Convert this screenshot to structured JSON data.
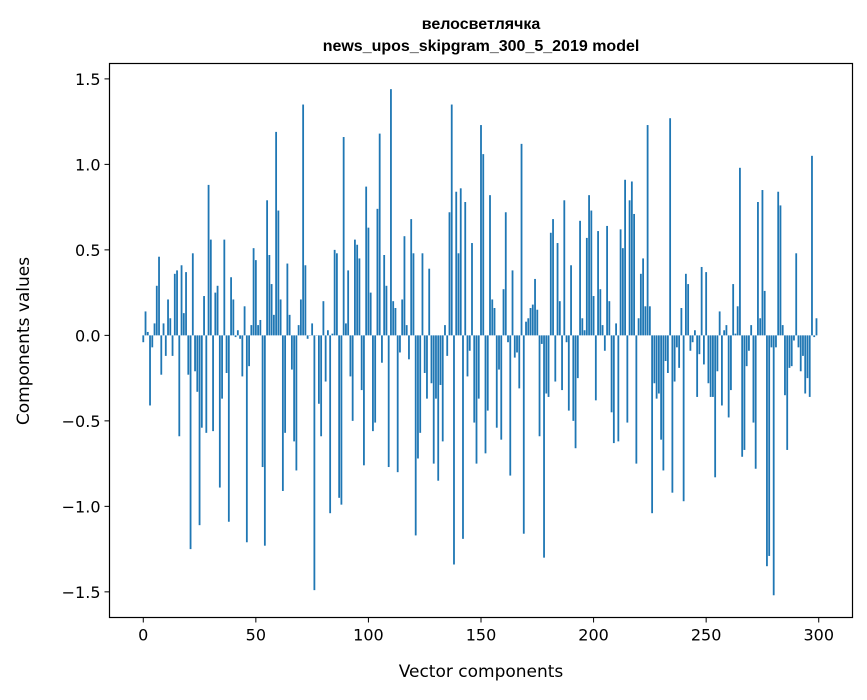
{
  "chart_data": {
    "type": "bar",
    "title": "велосветлячка",
    "subtitle": "news_upos_skipgram_300_5_2019 model",
    "xlabel": "Vector components",
    "ylabel": "Components values",
    "xlim": [
      -15,
      315
    ],
    "ylim": [
      -1.65,
      1.59
    ],
    "xticks": [
      0,
      50,
      100,
      150,
      200,
      250,
      300
    ],
    "xtick_labels": [
      "0",
      "50",
      "100",
      "150",
      "200",
      "250",
      "300"
    ],
    "yticks": [
      -1.5,
      -1.0,
      -0.5,
      0.0,
      0.5,
      1.0,
      1.5
    ],
    "ytick_labels": [
      "−1.5",
      "−1.0",
      "−0.5",
      "0.0",
      "0.5",
      "1.0",
      "1.5"
    ],
    "grid": false,
    "bar_color": "#1f77b4",
    "values": [
      -0.04,
      0.14,
      0.02,
      -0.41,
      -0.07,
      0.07,
      0.29,
      0.46,
      -0.23,
      0.07,
      -0.12,
      0.21,
      0.1,
      -0.12,
      0.36,
      0.38,
      -0.59,
      0.41,
      0.13,
      0.37,
      -0.23,
      -1.25,
      0.48,
      -0.21,
      -0.33,
      -1.11,
      -0.54,
      0.23,
      -0.57,
      0.88,
      0.56,
      -0.56,
      0.25,
      0.29,
      -0.89,
      -0.37,
      0.56,
      -0.22,
      -1.09,
      0.34,
      0.21,
      -0.01,
      0.03,
      -0.02,
      -0.24,
      0.17,
      -1.21,
      -0.18,
      0.06,
      0.51,
      0.44,
      0.06,
      0.09,
      -0.77,
      -1.23,
      0.79,
      0.47,
      0.3,
      0.12,
      1.19,
      0.73,
      0.21,
      -0.91,
      -0.57,
      0.42,
      0.12,
      -0.2,
      -0.62,
      -0.79,
      0.06,
      0.21,
      1.35,
      0.41,
      -0.02,
      0.0,
      0.07,
      -1.49,
      0.0,
      -0.4,
      -0.59,
      0.2,
      -0.27,
      0.03,
      -1.04,
      0.01,
      0.5,
      0.48,
      -0.95,
      -0.99,
      1.16,
      0.07,
      0.38,
      -0.24,
      -0.5,
      0.56,
      0.53,
      0.45,
      -0.32,
      -0.76,
      0.87,
      0.63,
      0.25,
      -0.56,
      -0.51,
      0.74,
      1.18,
      -0.16,
      0.47,
      0.29,
      -0.77,
      1.44,
      0.2,
      0.16,
      -0.8,
      -0.1,
      0.21,
      0.58,
      0.06,
      -0.14,
      0.68,
      0.48,
      -1.17,
      -0.72,
      -0.57,
      0.48,
      -0.22,
      -0.37,
      0.39,
      -0.28,
      -0.75,
      -0.37,
      -0.85,
      -0.29,
      -0.62,
      0.06,
      -0.12,
      0.72,
      1.35,
      -1.34,
      0.84,
      0.48,
      0.86,
      -1.19,
      0.78,
      -0.24,
      -0.09,
      0.54,
      -0.51,
      -0.75,
      -0.37,
      1.23,
      1.06,
      -0.69,
      -0.44,
      0.82,
      0.21,
      0.16,
      -0.54,
      -0.2,
      -0.61,
      0.27,
      0.72,
      -0.04,
      -0.82,
      0.38,
      -0.13,
      -0.1,
      -0.31,
      1.12,
      -1.16,
      0.08,
      0.1,
      0.16,
      0.18,
      0.33,
      0.15,
      -0.59,
      -0.05,
      -1.3,
      -0.34,
      -0.36,
      0.6,
      0.68,
      -0.27,
      0.54,
      0.2,
      -0.32,
      0.79,
      -0.04,
      -0.44,
      0.41,
      -0.5,
      -0.66,
      -0.25,
      0.67,
      0.1,
      0.03,
      0.57,
      0.82,
      0.73,
      0.23,
      -0.38,
      0.61,
      0.27,
      0.06,
      -0.09,
      0.64,
      0.2,
      -0.45,
      -0.63,
      0.07,
      -0.62,
      0.62,
      0.51,
      0.91,
      -0.51,
      0.79,
      0.9,
      0.71,
      -0.75,
      0.1,
      0.36,
      0.45,
      0.17,
      1.23,
      0.17,
      -1.04,
      -0.28,
      -0.37,
      -0.34,
      -0.61,
      -0.79,
      -0.15,
      -0.22,
      1.27,
      -0.92,
      -0.27,
      -0.07,
      -0.19,
      0.16,
      -0.97,
      0.36,
      0.3,
      -0.09,
      -0.04,
      0.03,
      -0.36,
      -0.11,
      0.4,
      -0.17,
      0.37,
      -0.28,
      -0.36,
      -0.36,
      -0.83,
      -0.21,
      0.14,
      -0.41,
      0.03,
      0.06,
      -0.48,
      -0.32,
      0.3,
      0.01,
      0.17,
      0.98,
      -0.71,
      -0.67,
      -0.18,
      -0.09,
      0.06,
      -0.51,
      -0.78,
      0.78,
      0.1,
      0.85,
      0.26,
      -1.35,
      -1.29,
      -0.07,
      -1.52,
      -0.07,
      0.84,
      0.76,
      0.06,
      -0.35,
      -0.67,
      -0.19,
      -0.18,
      -0.03,
      0.48,
      -0.07,
      -0.21,
      -0.12,
      -0.34,
      -0.25,
      -0.36,
      1.05,
      -0.01,
      0.1
    ]
  }
}
